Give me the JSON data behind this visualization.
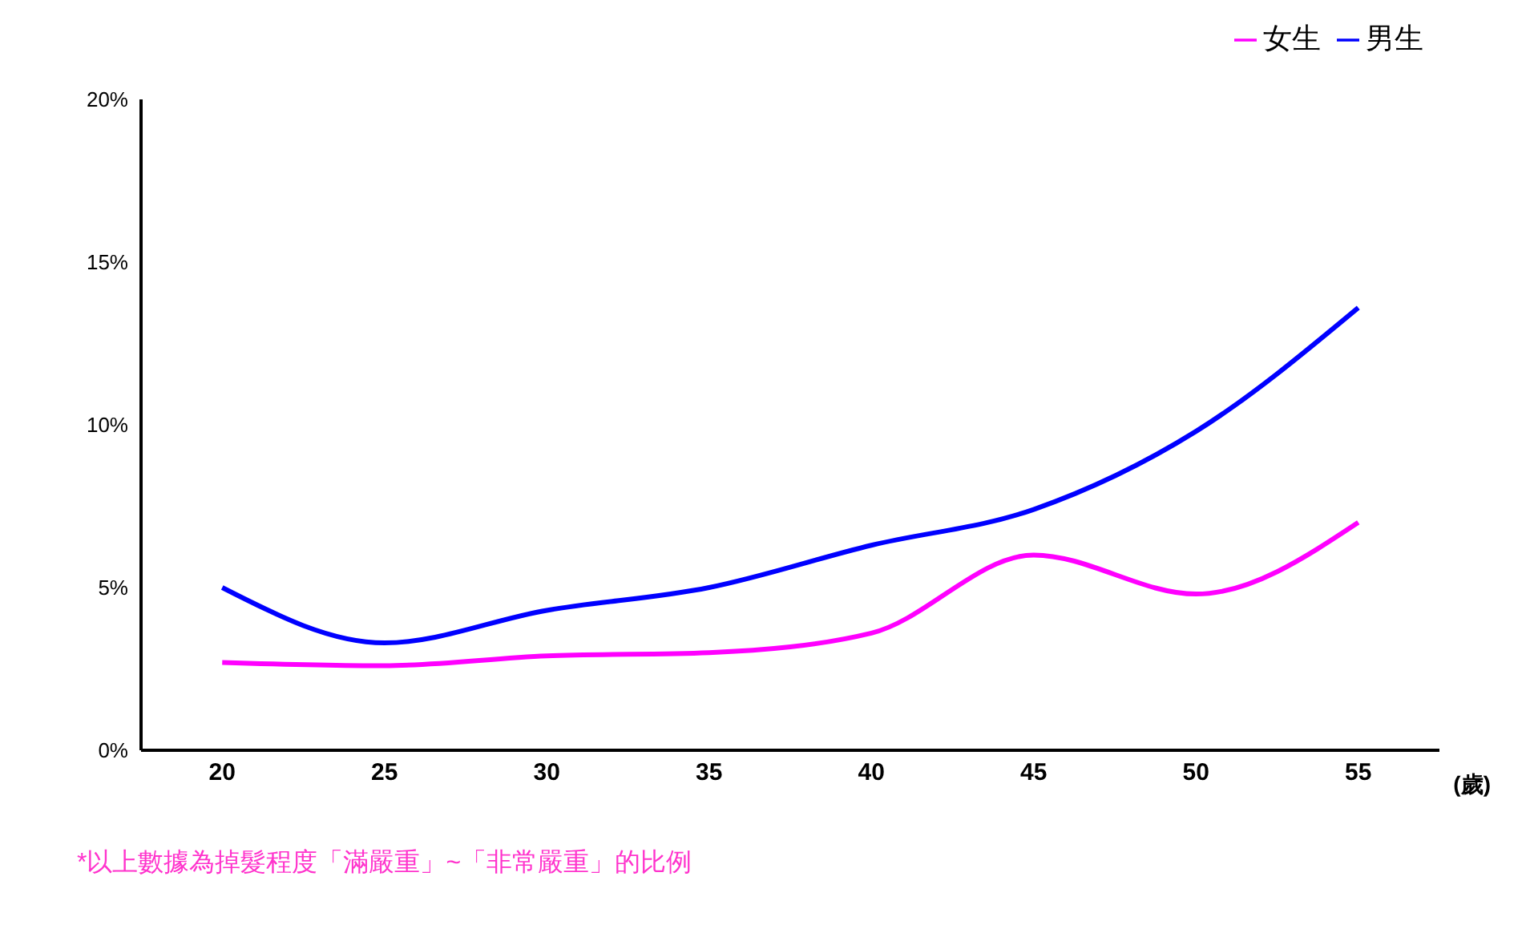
{
  "chart_data": {
    "type": "line",
    "categories": [
      "20",
      "25",
      "30",
      "35",
      "40",
      "45",
      "50",
      "55"
    ],
    "xlabel": "(歲)",
    "series": [
      {
        "name": "男生",
        "color": "#0000ff",
        "values": [
          5.0,
          3.3,
          4.3,
          5.0,
          6.3,
          7.4,
          9.8,
          13.6
        ]
      },
      {
        "name": "女生",
        "color": "#ff00ff",
        "values": [
          2.7,
          2.6,
          2.9,
          3.0,
          3.6,
          6.0,
          4.8,
          7.0
        ]
      }
    ],
    "ylim": [
      0,
      20
    ],
    "yticks": [
      {
        "value": 0,
        "label": "0%"
      },
      {
        "value": 5,
        "label": "5%"
      },
      {
        "value": 10,
        "label": "10%"
      },
      {
        "value": 15,
        "label": "15%"
      },
      {
        "value": 20,
        "label": "20%"
      }
    ],
    "grid": false,
    "legend": "top right",
    "marker": "none",
    "line_style": "solid",
    "annotations": [
      "*以上數據為掉髮程度「滿嚴重」~「非常嚴重」的比例"
    ]
  }
}
